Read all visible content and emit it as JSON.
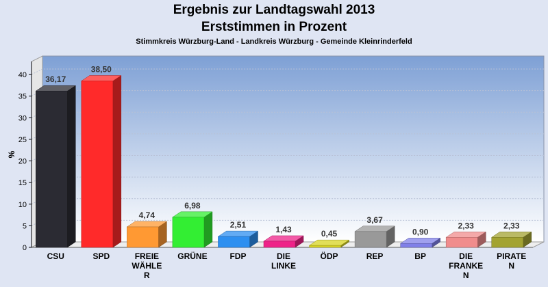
{
  "header": {
    "title": "Ergebnis zur Landtagswahl 2013",
    "subtitle": "Erststimmen in Prozent",
    "caption": "Stimmkreis Würzburg-Land - Landkreis Würzburg - Gemeinde Kleinrinderfeld"
  },
  "chart_data": {
    "type": "bar",
    "ylabel": "%",
    "ylim": [
      0,
      43
    ],
    "yticks": [
      "0",
      "5",
      "10",
      "15",
      "20",
      "25",
      "30",
      "35",
      "40"
    ],
    "grid": true,
    "categories": [
      "CSU",
      "SPD",
      "FREIE WÄHLE R",
      "GRÜNE",
      "FDP",
      "DIE LINKE",
      "ÖDP",
      "REP",
      "BP",
      "DIE FRANKE N",
      "PIRATE N"
    ],
    "category_lines": [
      [
        "CSU"
      ],
      [
        "SPD"
      ],
      [
        "FREIE",
        "WÄHLE",
        "R"
      ],
      [
        "GRÜNE"
      ],
      [
        "FDP"
      ],
      [
        "DIE",
        "LINKE"
      ],
      [
        "ÖDP"
      ],
      [
        "REP"
      ],
      [
        "BP"
      ],
      [
        "DIE",
        "FRANKE",
        "N"
      ],
      [
        "PIRATE",
        "N"
      ]
    ],
    "values": [
      36.17,
      38.5,
      4.74,
      6.98,
      2.51,
      1.43,
      0.45,
      3.67,
      0.9,
      2.33,
      2.33
    ],
    "value_labels": [
      "36,17",
      "38,50",
      "4,74",
      "6,98",
      "2,51",
      "1,43",
      "0,45",
      "3,67",
      "0,90",
      "2,33",
      "2,33"
    ],
    "colors": [
      "#2b2b33",
      "#ff2a2a",
      "#ff9933",
      "#33ee33",
      "#2d8ff0",
      "#ee2288",
      "#d8d422",
      "#999999",
      "#8080e8",
      "#f08c8c",
      "#a3a332"
    ]
  }
}
